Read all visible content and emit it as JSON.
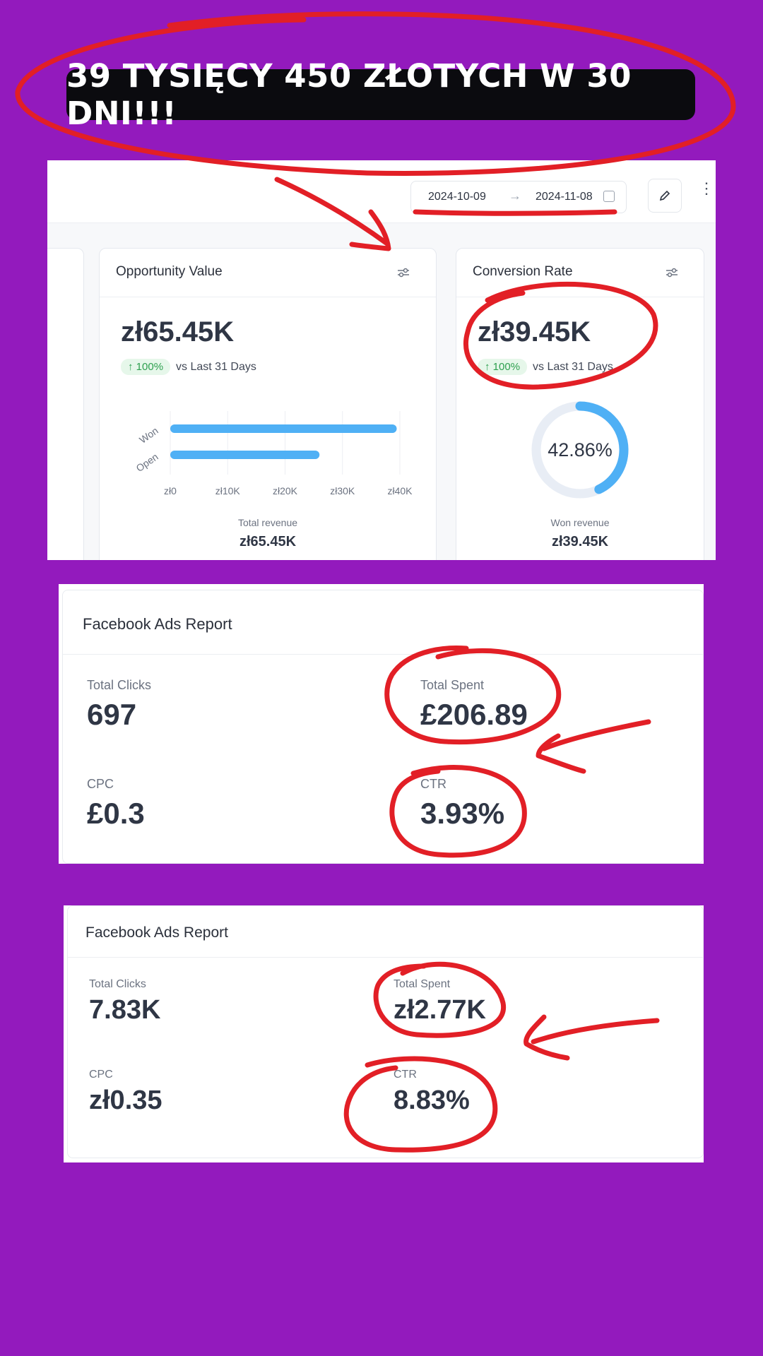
{
  "banner": {
    "text": "39 TYSIĘCY 450 ZŁOTYCH W 30 DNI!!!"
  },
  "dashboard": {
    "date_from": "2024-10-09",
    "date_to": "2024-11-08",
    "opportunity": {
      "title": "Opportunity Value",
      "value": "zł65.45K",
      "badge": "↑ 100%",
      "compare": "vs Last 31 Days",
      "bars": [
        {
          "label": "Won",
          "value": 39.45
        },
        {
          "label": "Open",
          "value": 26.0
        }
      ],
      "x_ticks": [
        "zł0",
        "zł10K",
        "zł20K",
        "zł30K",
        "zł40K"
      ],
      "footer_label": "Total revenue",
      "footer_value": "zł65.45K"
    },
    "conversion": {
      "title": "Conversion Rate",
      "value": "zł39.45K",
      "badge": "↑ 100%",
      "compare": "vs Last 31 Days",
      "donut_pct": 42.86,
      "donut_label": "42.86%",
      "footer_label": "Won revenue",
      "footer_value": "zł39.45K"
    }
  },
  "fb_report_1": {
    "title": "Facebook Ads Report",
    "total_clicks_label": "Total Clicks",
    "total_clicks": "697",
    "total_spent_label": "Total Spent",
    "total_spent": "£206.89",
    "cpc_label": "CPC",
    "cpc": "£0.3",
    "ctr_label": "CTR",
    "ctr": "3.93%"
  },
  "fb_report_2": {
    "title": "Facebook Ads Report",
    "total_clicks_label": "Total Clicks",
    "total_clicks": "7.83K",
    "total_spent_label": "Total Spent",
    "total_spent": "zł2.77K",
    "cpc_label": "CPC",
    "cpc": "zł0.35",
    "ctr_label": "CTR",
    "ctr": "8.83%"
  },
  "colors": {
    "background": "#931abd",
    "annotation": "#e21f26",
    "bar": "#4fb0f5"
  }
}
